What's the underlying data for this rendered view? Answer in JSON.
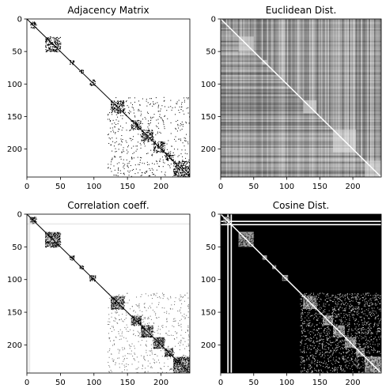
{
  "chart_data": [
    {
      "type": "heatmap",
      "title": "Adjacency Matrix",
      "colormap": "gray",
      "background": "white",
      "xlim": [
        0,
        243
      ],
      "ylim": [
        243,
        0
      ],
      "xticks": [
        "0",
        "50",
        "100",
        "150",
        "200"
      ],
      "yticks": [
        "0",
        "50",
        "100",
        "150",
        "200"
      ],
      "xtick_values": [
        0,
        50,
        100,
        150,
        200
      ],
      "ytick_values": [
        0,
        50,
        100,
        150,
        200
      ],
      "grid": false,
      "blocks": [
        [
          4,
          14
        ],
        [
          27,
          50
        ],
        [
          63,
          70
        ],
        [
          78,
          84
        ],
        [
          93,
          102
        ],
        [
          125,
          145
        ],
        [
          155,
          170
        ],
        [
          170,
          188
        ],
        [
          188,
          205
        ],
        [
          205,
          218
        ],
        [
          218,
          243
        ]
      ]
    },
    {
      "type": "heatmap",
      "title": "Euclidean Dist.",
      "colormap": "gray",
      "background": "gray",
      "xlim": [
        0,
        243
      ],
      "ylim": [
        243,
        0
      ],
      "xticks": [
        "0",
        "50",
        "100",
        "150",
        "200"
      ],
      "yticks": [
        "0",
        "50",
        "100",
        "150",
        "200"
      ],
      "xtick_values": [
        0,
        50,
        100,
        150,
        200
      ],
      "ytick_values": [
        0,
        50,
        100,
        150,
        200
      ],
      "grid": false,
      "blocks": [
        [
          27,
          50
        ],
        [
          63,
          70
        ],
        [
          125,
          145
        ],
        [
          170,
          205
        ],
        [
          218,
          243
        ]
      ]
    },
    {
      "type": "heatmap",
      "title": "Correlation coeff.",
      "colormap": "gray",
      "background": "white",
      "xlim": [
        0,
        243
      ],
      "ylim": [
        243,
        0
      ],
      "xticks": [
        "0",
        "50",
        "100",
        "150",
        "200"
      ],
      "yticks": [
        "0",
        "50",
        "100",
        "150",
        "200"
      ],
      "xtick_values": [
        0,
        50,
        100,
        150,
        200
      ],
      "ytick_values": [
        0,
        50,
        100,
        150,
        200
      ],
      "grid": false,
      "blocks": [
        [
          4,
          14
        ],
        [
          27,
          50
        ],
        [
          63,
          70
        ],
        [
          78,
          84
        ],
        [
          93,
          102
        ],
        [
          125,
          145
        ],
        [
          155,
          170
        ],
        [
          170,
          188
        ],
        [
          188,
          205
        ],
        [
          205,
          218
        ],
        [
          218,
          243
        ]
      ]
    },
    {
      "type": "heatmap",
      "title": "Cosine Dist.",
      "colormap": "gray",
      "background": "black",
      "xlim": [
        0,
        243
      ],
      "ylim": [
        243,
        0
      ],
      "xticks": [
        "0",
        "50",
        "100",
        "150",
        "200"
      ],
      "yticks": [
        "0",
        "50",
        "100",
        "150",
        "200"
      ],
      "xtick_values": [
        0,
        50,
        100,
        150,
        200
      ],
      "ytick_values": [
        0,
        50,
        100,
        150,
        200
      ],
      "grid": false,
      "blocks": [
        [
          4,
          14
        ],
        [
          27,
          50
        ],
        [
          63,
          70
        ],
        [
          78,
          84
        ],
        [
          93,
          102
        ],
        [
          125,
          145
        ],
        [
          155,
          170
        ],
        [
          170,
          188
        ],
        [
          188,
          205
        ],
        [
          205,
          218
        ],
        [
          218,
          243
        ]
      ]
    }
  ]
}
